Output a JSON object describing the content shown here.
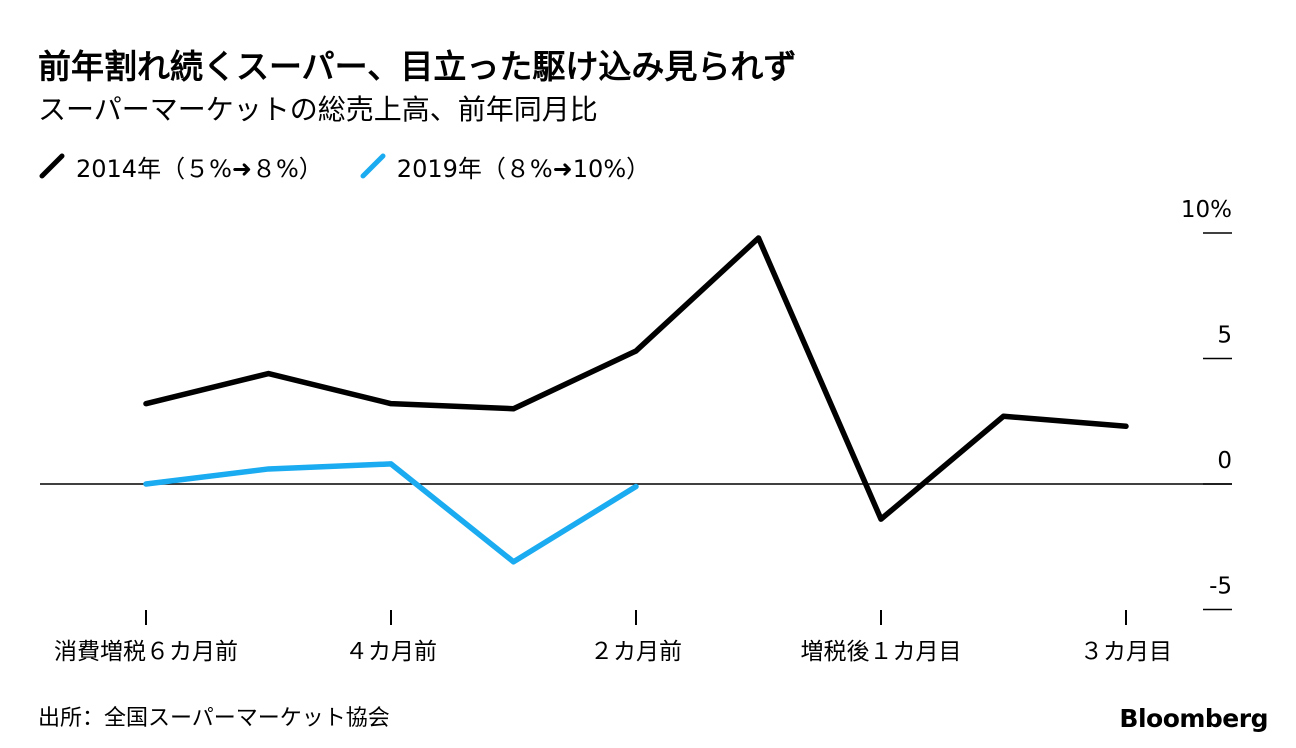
{
  "title": "前年割れ続くスーパー、目立った駆け込み見られず",
  "subtitle": "スーパーマーケットの総売上高、前年同月比",
  "source": "出所：全国スーパーマーケット協会",
  "logo": "Bloomberg",
  "colors": {
    "series_2014": "#000000",
    "series_2019": "#1aabf0",
    "axis": "#000000"
  },
  "chart_data": {
    "type": "line",
    "title": "前年割れ続くスーパー、目立った駆け込み見られず",
    "subtitle": "スーパーマーケットの総売上高、前年同月比",
    "xlabel": "",
    "ylabel": "",
    "x": [
      -6,
      -5,
      -4,
      -3,
      -2,
      -1,
      1,
      2,
      3
    ],
    "x_ticks": [
      {
        "x": -6,
        "label": "消費増税６カ月前"
      },
      {
        "x": -4,
        "label": "４カ月前"
      },
      {
        "x": -2,
        "label": "２カ月前"
      },
      {
        "x": 1,
        "label": "増税後１カ月目"
      },
      {
        "x": 3,
        "label": "３カ月目"
      }
    ],
    "y_ticks": [
      {
        "value": 10,
        "label": "10%"
      },
      {
        "value": 5,
        "label": "5"
      },
      {
        "value": 0,
        "label": "0"
      },
      {
        "value": -5,
        "label": "-5"
      }
    ],
    "ylim": [
      -5,
      10
    ],
    "legend_position": "top-left",
    "series": [
      {
        "name": "2014年（５%➜８%）",
        "color": "#000000",
        "values": [
          3.2,
          4.4,
          3.2,
          3.0,
          5.3,
          9.8,
          -1.4,
          2.7,
          2.3
        ]
      },
      {
        "name": "2019年（８%➜10%）",
        "color": "#1aabf0",
        "values": [
          0.0,
          0.6,
          0.8,
          -3.1,
          -0.1,
          null,
          null,
          null,
          null
        ]
      }
    ]
  }
}
